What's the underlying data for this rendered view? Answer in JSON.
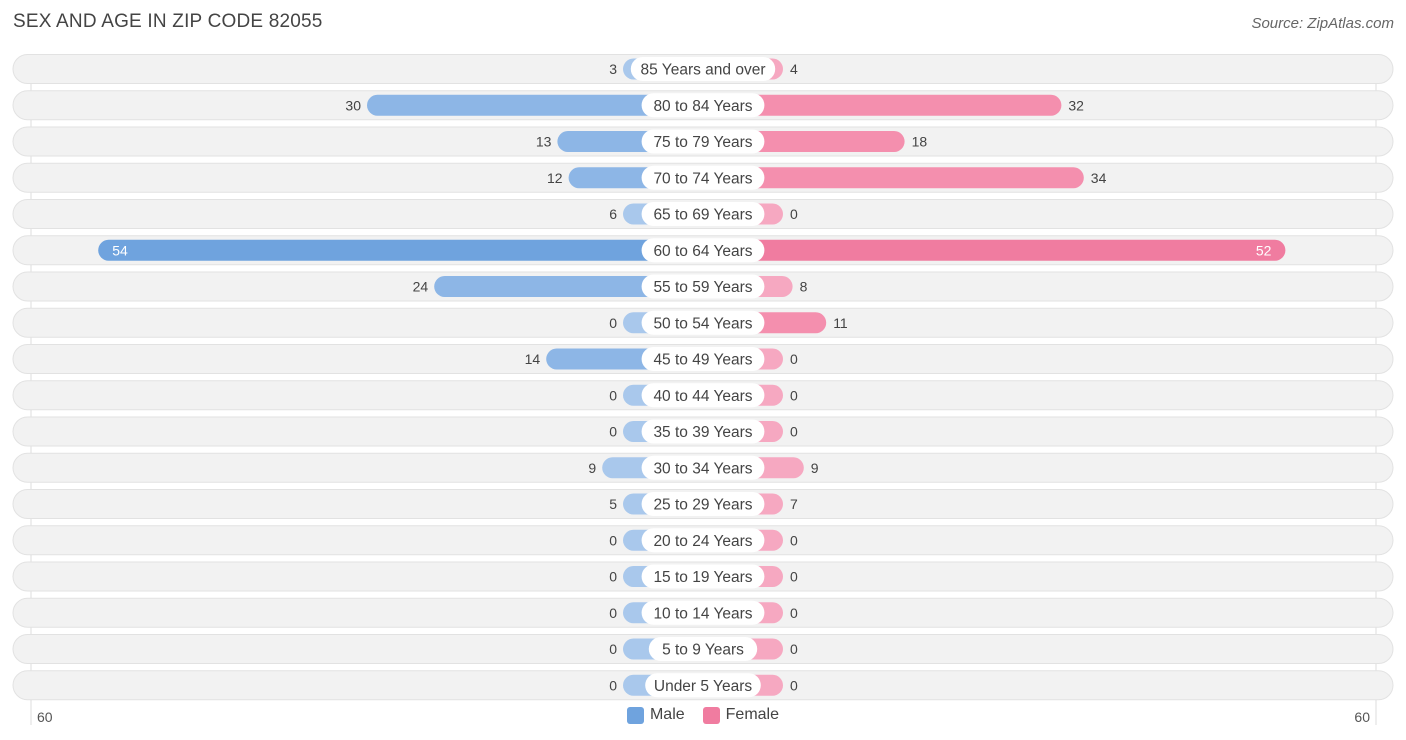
{
  "title": "SEX AND AGE IN ZIP CODE 82055",
  "source": "Source: ZipAtlas.com",
  "colors": {
    "male": "#6fa3de",
    "male_light": "#a9c8ec",
    "female": "#f07ca0",
    "female_light": "#f6a8c1",
    "row_bg": "#f2f2f2"
  },
  "legend": {
    "male_label": "Male",
    "female_label": "Female"
  },
  "axis": {
    "left_max_label": "60",
    "right_max_label": "60"
  },
  "chart_data": {
    "type": "bar",
    "orientation": "horizontal-butterfly",
    "title": "SEX AND AGE IN ZIP CODE 82055",
    "xlim": [
      -60,
      60
    ],
    "categories": [
      "85 Years and over",
      "80 to 84 Years",
      "75 to 79 Years",
      "70 to 74 Years",
      "65 to 69 Years",
      "60 to 64 Years",
      "55 to 59 Years",
      "50 to 54 Years",
      "45 to 49 Years",
      "40 to 44 Years",
      "35 to 39 Years",
      "30 to 34 Years",
      "25 to 29 Years",
      "20 to 24 Years",
      "15 to 19 Years",
      "10 to 14 Years",
      "5 to 9 Years",
      "Under 5 Years"
    ],
    "series": [
      {
        "name": "Male",
        "values": [
          3,
          30,
          13,
          12,
          6,
          54,
          24,
          0,
          14,
          0,
          0,
          9,
          5,
          0,
          0,
          0,
          0,
          0
        ]
      },
      {
        "name": "Female",
        "values": [
          4,
          32,
          18,
          34,
          0,
          52,
          8,
          11,
          0,
          0,
          0,
          9,
          7,
          0,
          0,
          0,
          0,
          0
        ]
      }
    ],
    "legend_position": "bottom-center"
  }
}
